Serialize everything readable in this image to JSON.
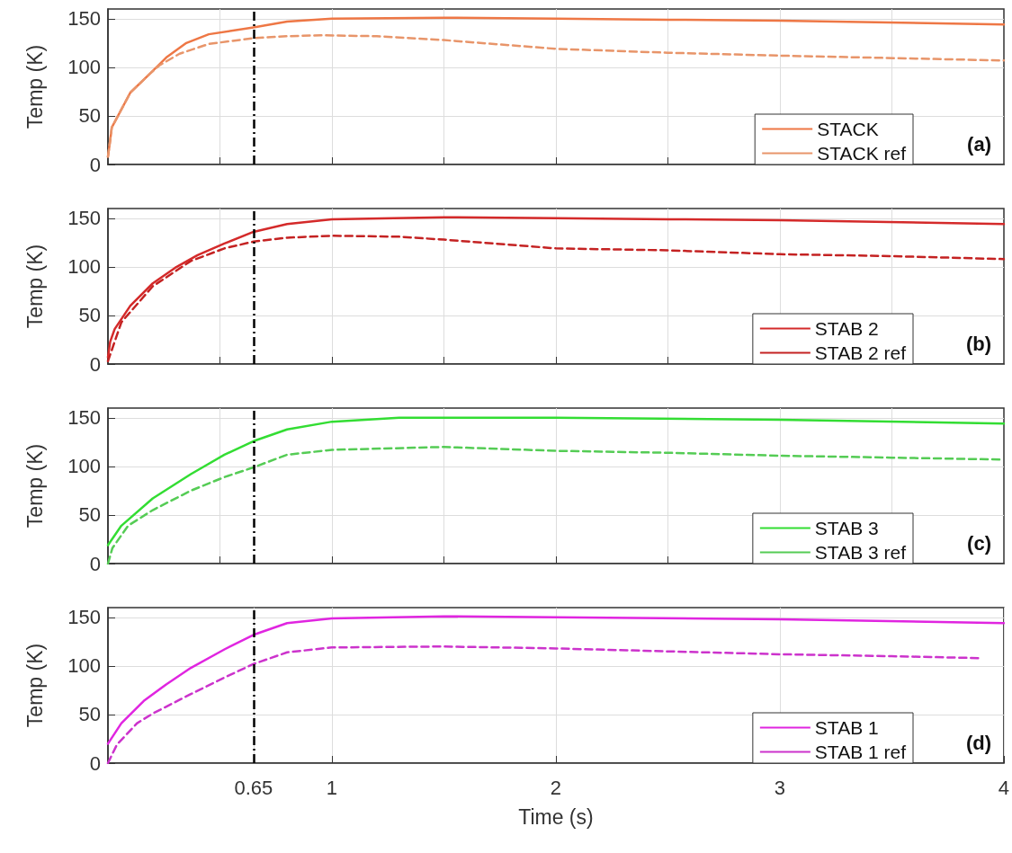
{
  "chart_data": [
    {
      "type": "line",
      "ylabel": "Temp (K)",
      "xlim": [
        0,
        4
      ],
      "ylim": [
        0,
        160
      ],
      "yticks": [
        0,
        50,
        100,
        150
      ],
      "xticks": [
        {
          "value": 0.5,
          "label": null
        },
        {
          "value": 1,
          "label": null
        },
        {
          "value": 1.5,
          "label": null
        },
        {
          "value": 2,
          "label": null
        },
        {
          "value": 2.5,
          "label": null
        },
        {
          "value": 3,
          "label": null
        },
        {
          "value": 3.5,
          "label": null
        }
      ],
      "tick_labels": "y",
      "grid": true,
      "legend": "bottom right",
      "marker": "none",
      "annotations": [
        "(a)"
      ],
      "ref_lines": [
        {
          "axis": "x",
          "value": 0.65,
          "color": "#000000",
          "line_style": "dashed"
        }
      ],
      "series": [
        {
          "name": "STACK",
          "color": "#ee7745",
          "line_style": "solid",
          "x": [
            0,
            0.01,
            0.017,
            0.1,
            0.19,
            0.26,
            0.35,
            0.45,
            0.65,
            0.8,
            1,
            1.5,
            2,
            2.5,
            3,
            4
          ],
          "values": [
            8,
            25,
            38,
            74,
            94,
            110,
            125,
            134,
            141,
            147,
            150,
            151,
            150,
            149,
            148,
            144
          ]
        },
        {
          "name": "STACK ref",
          "color": "#e8956a",
          "line_style": "dashed",
          "x": [
            0,
            0.01,
            0.017,
            0.1,
            0.19,
            0.23,
            0.32,
            0.45,
            0.65,
            0.8,
            0.95,
            1.2,
            1.5,
            2,
            2.5,
            3,
            4
          ],
          "values": [
            8,
            25,
            38,
            74,
            94,
            102,
            114,
            124,
            130,
            132,
            133,
            132,
            128,
            119,
            115,
            112,
            107
          ]
        }
      ]
    },
    {
      "type": "line",
      "ylabel": "Temp (K)",
      "xlim": [
        0,
        4
      ],
      "ylim": [
        0,
        160
      ],
      "yticks": [
        0,
        50,
        100,
        150
      ],
      "xticks": [
        {
          "value": 0.5,
          "label": null
        },
        {
          "value": 1,
          "label": null
        },
        {
          "value": 1.5,
          "label": null
        },
        {
          "value": 2,
          "label": null
        },
        {
          "value": 2.5,
          "label": null
        },
        {
          "value": 3,
          "label": null
        },
        {
          "value": 3.5,
          "label": null
        }
      ],
      "tick_labels": "y",
      "grid": true,
      "legend": "bottom right",
      "marker": "none",
      "annotations": [
        "(b)"
      ],
      "ref_lines": [
        {
          "axis": "x",
          "value": 0.65,
          "color": "#000000",
          "line_style": "dashed"
        }
      ],
      "series": [
        {
          "name": "STAB 2",
          "color": "#d42a2a",
          "line_style": "solid",
          "x": [
            0,
            0.01,
            0.03,
            0.1,
            0.2,
            0.3,
            0.4,
            0.52,
            0.65,
            0.8,
            1,
            1.5,
            2,
            2.5,
            3,
            4
          ],
          "values": [
            7,
            23,
            36,
            60,
            83,
            99,
            112,
            124,
            136,
            144,
            149,
            151,
            150,
            149,
            148,
            144
          ]
        },
        {
          "name": "STAB 2 ref",
          "color": "#c42222",
          "line_style": "dashed",
          "x": [
            0,
            0.06,
            0.2,
            0.37,
            0.52,
            0.65,
            0.8,
            1,
            1.3,
            1.5,
            2,
            2.5,
            3,
            3.5,
            4
          ],
          "values": [
            3,
            43,
            80,
            106,
            119,
            126,
            130,
            132,
            131,
            128,
            119,
            117,
            113,
            111,
            108
          ]
        }
      ]
    },
    {
      "type": "line",
      "ylabel": "Temp (K)",
      "xlim": [
        0,
        4
      ],
      "ylim": [
        0,
        160
      ],
      "yticks": [
        0,
        50,
        100,
        150
      ],
      "xticks": [
        {
          "value": 0.5,
          "label": null
        },
        {
          "value": 1,
          "label": null
        },
        {
          "value": 1.5,
          "label": null
        },
        {
          "value": 2,
          "label": null
        },
        {
          "value": 2.5,
          "label": null
        },
        {
          "value": 3,
          "label": null
        },
        {
          "value": 3.5,
          "label": null
        }
      ],
      "tick_labels": "y",
      "grid": true,
      "legend": "bottom right",
      "marker": "none",
      "annotations": [
        "(c)"
      ],
      "ref_lines": [
        {
          "axis": "x",
          "value": 0.65,
          "color": "#000000",
          "line_style": "dashed"
        }
      ],
      "series": [
        {
          "name": "STAB 3",
          "color": "#33dd33",
          "line_style": "solid",
          "x": [
            0,
            0.06,
            0.2,
            0.37,
            0.52,
            0.65,
            0.8,
            1,
            1.3,
            1.5,
            2,
            3,
            4
          ],
          "values": [
            19,
            39,
            67,
            92,
            112,
            126,
            138,
            146,
            150,
            150,
            150,
            148,
            144
          ]
        },
        {
          "name": "STAB 3 ref",
          "color": "#55cc55",
          "line_style": "dashed",
          "x": [
            0,
            0.02,
            0.09,
            0.2,
            0.37,
            0.52,
            0.65,
            0.8,
            1,
            1.5,
            2,
            2.5,
            3,
            3.5,
            4
          ],
          "values": [
            0,
            16,
            39,
            55,
            75,
            89,
            99,
            112,
            117,
            120,
            116,
            114,
            111,
            109,
            107
          ]
        }
      ]
    },
    {
      "type": "line",
      "ylabel": "Temp (K)",
      "xlabel": "Time (s)",
      "xlim": [
        0,
        4
      ],
      "ylim": [
        0,
        160
      ],
      "yticks": [
        0,
        50,
        100,
        150
      ],
      "xticks": [
        0.65,
        1,
        2,
        3,
        4
      ],
      "grid": true,
      "legend": "bottom right",
      "marker": "none",
      "annotations": [
        "(d)"
      ],
      "ref_lines": [
        {
          "axis": "x",
          "value": 0.65,
          "color": "#000000",
          "line_style": "dashed"
        }
      ],
      "series": [
        {
          "name": "STAB 1",
          "color": "#e025e0",
          "line_style": "solid",
          "x": [
            0,
            0.06,
            0.16,
            0.26,
            0.37,
            0.52,
            0.65,
            0.8,
            1,
            1.5,
            2,
            3,
            4
          ],
          "values": [
            20,
            41,
            64,
            81,
            98,
            117,
            132,
            144,
            149,
            151,
            150,
            148,
            144
          ]
        },
        {
          "name": "STAB 1 ref",
          "color": "#cc33cc",
          "line_style": "dashed",
          "x": [
            0,
            0.04,
            0.13,
            0.2,
            0.37,
            0.52,
            0.65,
            0.8,
            1,
            1.5,
            2,
            2.5,
            3,
            3.5,
            3.9
          ],
          "values": [
            0,
            19,
            41,
            51,
            71,
            88,
            102,
            114,
            119,
            120,
            118,
            115,
            112,
            110,
            108
          ]
        }
      ]
    }
  ]
}
